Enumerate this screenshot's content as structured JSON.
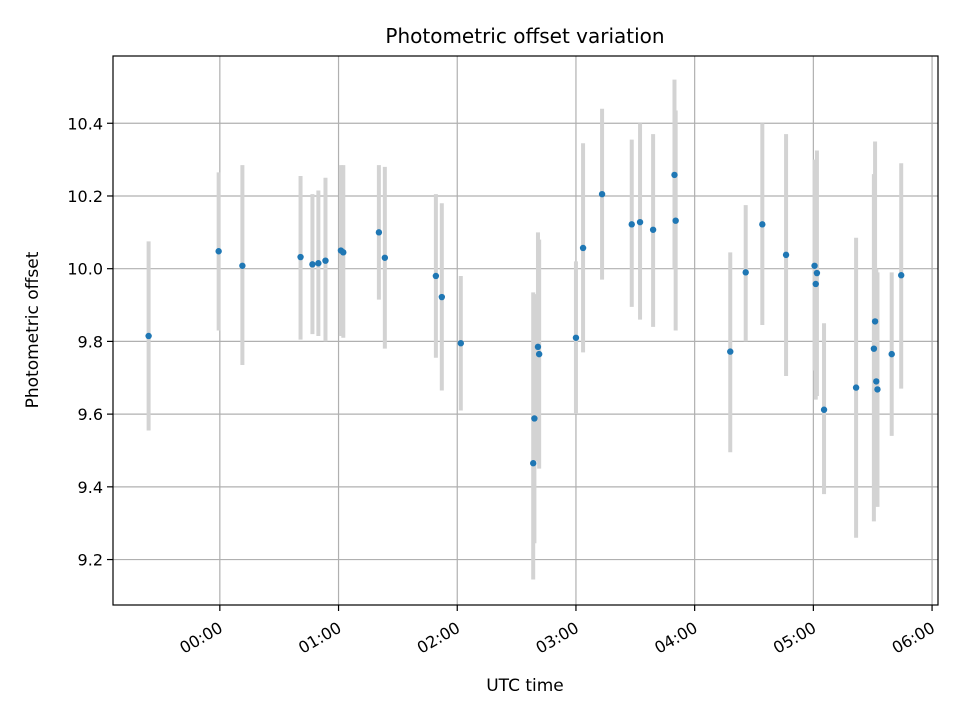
{
  "chart_data": {
    "type": "scatter",
    "title": "Photometric offset variation",
    "xlabel": "UTC time",
    "ylabel": "Photometric offset",
    "x_unit": "hours UTC",
    "xlim": [
      -0.9,
      6.05
    ],
    "ylim": [
      9.075,
      10.585
    ],
    "grid": true,
    "x_ticks": [
      {
        "value": 0,
        "label": "00:00"
      },
      {
        "value": 1,
        "label": "01:00"
      },
      {
        "value": 2,
        "label": "02:00"
      },
      {
        "value": 3,
        "label": "03:00"
      },
      {
        "value": 4,
        "label": "04:00"
      },
      {
        "value": 5,
        "label": "05:00"
      },
      {
        "value": 6,
        "label": "06:00"
      }
    ],
    "y_ticks": [
      {
        "value": 9.2,
        "label": "9.2"
      },
      {
        "value": 9.4,
        "label": "9.4"
      },
      {
        "value": 9.6,
        "label": "9.6"
      },
      {
        "value": 9.8,
        "label": "9.8"
      },
      {
        "value": 10.0,
        "label": "10.0"
      },
      {
        "value": 10.2,
        "label": "10.2"
      },
      {
        "value": 10.4,
        "label": "10.4"
      }
    ],
    "colors": {
      "marker": "#1f77b4",
      "errorbar": "#d3d3d3",
      "grid": "#b0b0b0"
    },
    "points": [
      {
        "x": -0.6,
        "y": 9.815,
        "low": 9.555,
        "high": 10.075
      },
      {
        "x": -0.01,
        "y": 10.048,
        "low": 9.83,
        "high": 10.265
      },
      {
        "x": 0.19,
        "y": 10.008,
        "low": 9.735,
        "high": 10.285
      },
      {
        "x": 0.68,
        "y": 10.032,
        "low": 9.805,
        "high": 10.255
      },
      {
        "x": 0.78,
        "y": 10.012,
        "low": 9.82,
        "high": 10.205
      },
      {
        "x": 0.83,
        "y": 10.015,
        "low": 9.815,
        "high": 10.215
      },
      {
        "x": 0.89,
        "y": 10.022,
        "low": 9.8,
        "high": 10.25
      },
      {
        "x": 1.02,
        "y": 10.05,
        "low": 9.815,
        "high": 10.285
      },
      {
        "x": 1.04,
        "y": 10.045,
        "low": 9.81,
        "high": 10.285
      },
      {
        "x": 1.34,
        "y": 10.1,
        "low": 9.915,
        "high": 10.285
      },
      {
        "x": 1.39,
        "y": 10.03,
        "low": 9.78,
        "high": 10.28
      },
      {
        "x": 1.82,
        "y": 9.98,
        "low": 9.755,
        "high": 10.205
      },
      {
        "x": 1.87,
        "y": 9.922,
        "low": 9.665,
        "high": 10.18
      },
      {
        "x": 2.03,
        "y": 9.795,
        "low": 9.61,
        "high": 9.98
      },
      {
        "x": 2.64,
        "y": 9.465,
        "low": 9.145,
        "high": 9.935
      },
      {
        "x": 2.65,
        "y": 9.588,
        "low": 9.245,
        "high": 9.93
      },
      {
        "x": 2.68,
        "y": 9.785,
        "low": 9.47,
        "high": 10.1
      },
      {
        "x": 2.69,
        "y": 9.765,
        "low": 9.45,
        "high": 10.08
      },
      {
        "x": 3.0,
        "y": 9.81,
        "low": 9.6,
        "high": 10.02
      },
      {
        "x": 3.06,
        "y": 10.057,
        "low": 9.77,
        "high": 10.345
      },
      {
        "x": 3.22,
        "y": 10.205,
        "low": 9.97,
        "high": 10.44
      },
      {
        "x": 3.47,
        "y": 10.122,
        "low": 9.895,
        "high": 10.355
      },
      {
        "x": 3.54,
        "y": 10.128,
        "low": 9.86,
        "high": 10.4
      },
      {
        "x": 3.65,
        "y": 10.107,
        "low": 9.84,
        "high": 10.37
      },
      {
        "x": 3.83,
        "y": 10.258,
        "low": 10.0,
        "high": 10.52
      },
      {
        "x": 3.84,
        "y": 10.132,
        "low": 9.83,
        "high": 10.435
      },
      {
        "x": 4.3,
        "y": 9.772,
        "low": 9.495,
        "high": 10.045
      },
      {
        "x": 4.43,
        "y": 9.99,
        "low": 9.8,
        "high": 10.175
      },
      {
        "x": 4.57,
        "y": 10.122,
        "low": 9.845,
        "high": 10.4
      },
      {
        "x": 4.77,
        "y": 10.038,
        "low": 9.705,
        "high": 10.37
      },
      {
        "x": 5.01,
        "y": 10.008,
        "low": 9.72,
        "high": 10.3
      },
      {
        "x": 5.02,
        "y": 9.958,
        "low": 9.64,
        "high": 10.27
      },
      {
        "x": 5.03,
        "y": 9.988,
        "low": 9.65,
        "high": 10.325
      },
      {
        "x": 5.09,
        "y": 9.612,
        "low": 9.38,
        "high": 9.85
      },
      {
        "x": 5.36,
        "y": 9.673,
        "low": 9.26,
        "high": 10.085
      },
      {
        "x": 5.51,
        "y": 9.78,
        "low": 9.305,
        "high": 10.26
      },
      {
        "x": 5.52,
        "y": 9.855,
        "low": 9.36,
        "high": 10.35
      },
      {
        "x": 5.53,
        "y": 9.69,
        "low": 9.38,
        "high": 10.0
      },
      {
        "x": 5.54,
        "y": 9.668,
        "low": 9.345,
        "high": 9.99
      },
      {
        "x": 5.66,
        "y": 9.765,
        "low": 9.54,
        "high": 9.99
      },
      {
        "x": 5.74,
        "y": 9.982,
        "low": 9.67,
        "high": 10.29
      }
    ]
  }
}
